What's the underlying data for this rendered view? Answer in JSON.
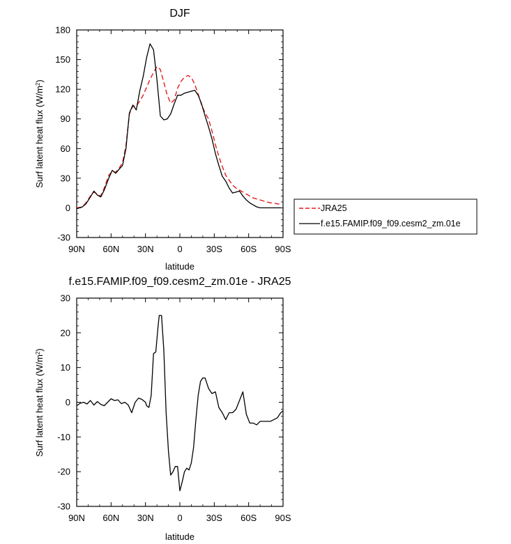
{
  "chart_data": [
    {
      "type": "line",
      "title": "DJF",
      "xlabel": "latitude",
      "ylabel": "Surf latent heat flux (W/m²)",
      "ylabel_main": "Surf latent heat flux (W/m",
      "ylabel_sup": "2",
      "ylabel_close": ")",
      "xlim": [
        90,
        -90
      ],
      "ylim": [
        -30,
        180
      ],
      "x_ticks": [
        90,
        60,
        30,
        0,
        -30,
        -60,
        -90
      ],
      "x_tick_labels": [
        "90N",
        "60N",
        "30N",
        "0",
        "30S",
        "60S",
        "90S"
      ],
      "y_ticks": [
        -30,
        0,
        30,
        60,
        90,
        120,
        150,
        180
      ],
      "y_tick_labels": [
        "-30",
        "0",
        "30",
        "60",
        "90",
        "120",
        "150",
        "180"
      ],
      "grid": false,
      "legend": "right",
      "series": [
        {
          "name": "JRA25",
          "color": "#e41a1c",
          "dash": true,
          "x": [
            90,
            85,
            82,
            78,
            75,
            72,
            69,
            66,
            62,
            59,
            56,
            53,
            50,
            47,
            44,
            41,
            38,
            35,
            32,
            29,
            26,
            23,
            20,
            17,
            14,
            11,
            8,
            5,
            2,
            -1,
            -4,
            -7,
            -10,
            -13,
            -16,
            -19,
            -22,
            -25,
            -28,
            -31,
            -34,
            -37,
            -40,
            -43,
            -46,
            -49,
            -52,
            -55,
            -58,
            -61,
            -64,
            -67,
            -70,
            -73,
            -76,
            -79,
            -82,
            -85,
            -88
          ],
          "values": [
            0,
            1,
            5,
            12,
            16,
            14,
            12,
            20,
            33,
            37,
            36,
            40,
            46,
            63,
            95,
            103,
            103,
            108,
            114,
            122,
            130,
            137,
            143,
            140,
            127,
            114,
            106,
            109,
            121,
            128,
            132,
            134,
            132,
            125,
            115,
            104,
            96,
            90,
            78,
            64,
            52,
            42,
            33,
            28,
            23,
            20,
            18,
            16,
            14,
            12,
            10,
            9,
            8,
            7,
            6,
            5,
            5,
            4,
            4
          ]
        },
        {
          "name": "f.e15.FAMIP.f09_f09.cesm2_zm.01e",
          "color": "#000000",
          "dash": false,
          "x": [
            90,
            85,
            82,
            78,
            75,
            72,
            69,
            66,
            62,
            59,
            56,
            53,
            50,
            47,
            44,
            41,
            38,
            35,
            32,
            29,
            26,
            23,
            20,
            17,
            14,
            11,
            8,
            5,
            2,
            -1,
            -4,
            -7,
            -10,
            -13,
            -16,
            -19,
            -22,
            -25,
            -28,
            -31,
            -34,
            -37,
            -40,
            -43,
            -46,
            -49,
            -52,
            -55,
            -58,
            -61,
            -64,
            -67,
            -70,
            -73,
            -76,
            -79,
            -82,
            -85,
            -88
          ],
          "values": [
            -1,
            1,
            4,
            11,
            17,
            13,
            11,
            18,
            30,
            38,
            35,
            39,
            43,
            60,
            96,
            104,
            99,
            118,
            133,
            152,
            166,
            160,
            130,
            93,
            89,
            90,
            95,
            105,
            114,
            114,
            116,
            117,
            118,
            119,
            114,
            105,
            93,
            82,
            70,
            55,
            43,
            32,
            27,
            20,
            15,
            16,
            17,
            12,
            8,
            5,
            3,
            1,
            0,
            0,
            0,
            0,
            0,
            0,
            0
          ]
        }
      ]
    },
    {
      "type": "line",
      "title": "f.e15.FAMIP.f09_f09.cesm2_zm.01e - JRA25",
      "xlabel": "latitude",
      "ylabel": "Surf latent heat flux (W/m²)",
      "ylabel_main": "Surf latent heat flux (W/m",
      "ylabel_sup": "2",
      "ylabel_close": ")",
      "xlim": [
        90,
        -90
      ],
      "ylim": [
        -30,
        30
      ],
      "x_ticks": [
        90,
        60,
        30,
        0,
        -30,
        -60,
        -90
      ],
      "x_tick_labels": [
        "90N",
        "60N",
        "30N",
        "0",
        "30S",
        "60S",
        "90S"
      ],
      "y_ticks": [
        -30,
        -20,
        -10,
        0,
        10,
        20,
        30
      ],
      "y_tick_labels": [
        "-30",
        "-20",
        "-10",
        "0",
        "10",
        "20",
        "30"
      ],
      "grid": false,
      "legend": "none",
      "series": [
        {
          "color": "#000000",
          "dash": false,
          "x": [
            90,
            87,
            84,
            81,
            78,
            75,
            72,
            69,
            66,
            63,
            60,
            57,
            54,
            51,
            48,
            45,
            42,
            39,
            36,
            33,
            30,
            29,
            27,
            25,
            23,
            21,
            19,
            18,
            16,
            14,
            12,
            10,
            8,
            6,
            4,
            2,
            0,
            -2,
            -4,
            -6,
            -8,
            -10,
            -12,
            -14,
            -16,
            -18,
            -20,
            -22,
            -25,
            -28,
            -31,
            -34,
            -37,
            -40,
            -43,
            -46,
            -49,
            -52,
            -55,
            -58,
            -61,
            -64,
            -67,
            -70,
            -73,
            -76,
            -79,
            -82,
            -85,
            -88,
            -90
          ],
          "values": [
            -1,
            -0.3,
            0,
            -0.5,
            0.5,
            -0.8,
            0.2,
            -0.6,
            -1,
            0,
            1,
            0.5,
            0.7,
            -0.4,
            0,
            -0.8,
            -3,
            0,
            1.2,
            0.8,
            0,
            -1,
            -1.5,
            2,
            14,
            14.5,
            22,
            25,
            25,
            15,
            -3,
            -14,
            -21,
            -20,
            -18.5,
            -18.5,
            -25.5,
            -23,
            -20,
            -19,
            -19.5,
            -17.5,
            -13,
            -5,
            2,
            6,
            7,
            7,
            4,
            2.5,
            3,
            -1.5,
            -3,
            -5,
            -3,
            -3,
            -2,
            0.5,
            3,
            -3.5,
            -6,
            -6,
            -6.5,
            -5.5,
            -5.5,
            -5.5,
            -5.5,
            -5,
            -4.5,
            -3,
            -2.5
          ]
        }
      ]
    }
  ]
}
